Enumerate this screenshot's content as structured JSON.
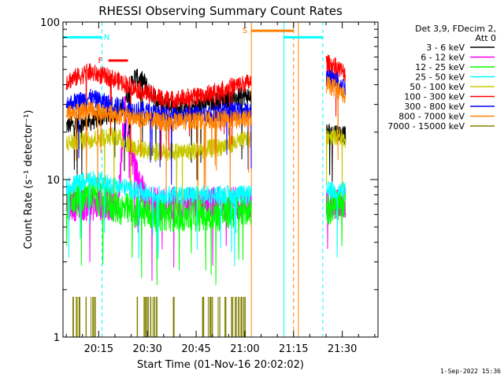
{
  "chart_data": {
    "type": "line",
    "title": "RHESSI Observing Summary Count Rates",
    "xlabel": "Start Time (01-Nov-16 20:02:02)",
    "ylabel": "Count Rate (s⁻¹ detector⁻¹)",
    "yscale": "log",
    "ylim": [
      1,
      100
    ],
    "y_ticks": [
      {
        "value": 1,
        "label": "1"
      },
      {
        "value": 10,
        "label": "10"
      },
      {
        "value": 100,
        "label": "100"
      }
    ],
    "x_ticks": [
      {
        "minutes": 13,
        "label": "20:15"
      },
      {
        "minutes": 28,
        "label": "20:30"
      },
      {
        "minutes": 43,
        "label": "20:45"
      },
      {
        "minutes": 58,
        "label": "21:00"
      },
      {
        "minutes": 73,
        "label": "21:15"
      },
      {
        "minutes": 88,
        "label": "21:30"
      }
    ],
    "xlim_minutes": [
      2,
      99
    ],
    "legend_header": [
      "Det 3,9, FDecim 2,",
      "Att 0"
    ],
    "legend_position": "right",
    "footer": "1-Sep-2022 15:36",
    "series": [
      {
        "name": "3 - 6 keV",
        "color": "#000000",
        "x": [
          3,
          10,
          20,
          24,
          27,
          29,
          33,
          40,
          50,
          59,
          83,
          86,
          89
        ],
        "y": [
          22,
          23,
          28,
          45,
          42,
          35,
          30,
          28,
          32,
          34,
          20,
          20,
          19
        ]
      },
      {
        "name": "6 - 12 keV",
        "color": "#ff00ff",
        "x": [
          3,
          10,
          19,
          21,
          23,
          25,
          26,
          27,
          28,
          29,
          83,
          86,
          89
        ],
        "y": [
          7,
          7,
          7,
          28,
          15,
          10,
          9,
          8,
          7,
          7,
          7,
          7,
          7
        ]
      },
      {
        "name": "12 - 25 keV",
        "color": "#00ff00",
        "x": [
          3,
          10,
          20,
          30,
          40,
          50,
          59,
          83,
          86,
          89
        ],
        "y": [
          7,
          8,
          6.5,
          6,
          6,
          6,
          6.5,
          6.5,
          7,
          7
        ]
      },
      {
        "name": "25 - 50 keV",
        "color": "#00ffff",
        "x": [
          3,
          10,
          20,
          30,
          40,
          50,
          59,
          83,
          86,
          89
        ],
        "y": [
          9,
          10,
          9,
          8,
          8,
          8,
          8,
          8.5,
          8.5,
          8.5
        ]
      },
      {
        "name": "50 - 100 keV",
        "color": "#c8c800",
        "x": [
          3,
          10,
          18,
          24,
          30,
          40,
          50,
          59,
          83,
          86,
          89
        ],
        "y": [
          17,
          18,
          19,
          16,
          15,
          15,
          16,
          18,
          19,
          19,
          18
        ]
      },
      {
        "name": "100 - 300 keV",
        "color": "#ff0000",
        "x": [
          3,
          10,
          17,
          22,
          28,
          35,
          45,
          52,
          59,
          83,
          86,
          89
        ],
        "y": [
          42,
          48,
          44,
          40,
          35,
          32,
          34,
          38,
          41,
          55,
          52,
          47
        ]
      },
      {
        "name": "300 - 800 keV",
        "color": "#0000ff",
        "x": [
          3,
          10,
          17,
          22,
          28,
          35,
          45,
          52,
          59,
          83,
          86,
          89
        ],
        "y": [
          30,
          33,
          30,
          28,
          27,
          25,
          26,
          27,
          27,
          45,
          43,
          38
        ]
      },
      {
        "name": "800 - 7000 keV",
        "color": "#ff8000",
        "x": [
          3,
          10,
          17,
          22,
          28,
          35,
          45,
          52,
          59,
          83,
          86,
          89
        ],
        "y": [
          26,
          28,
          26,
          25,
          24,
          23,
          24,
          24,
          24,
          40,
          38,
          34
        ]
      },
      {
        "name": "7000 - 15000 keV",
        "color": "#808000",
        "x": [
          5,
          6,
          7,
          9,
          11,
          12,
          25,
          27,
          28,
          29,
          30,
          31,
          36,
          45,
          47,
          48,
          50,
          52,
          54,
          55,
          56,
          57,
          58
        ],
        "y": [
          1.8,
          1.8,
          1.8,
          1.8,
          1.8,
          1.8,
          1.8,
          1.8,
          1.8,
          1.8,
          1.8,
          1.8,
          1.8,
          1.8,
          1.8,
          1.8,
          1.8,
          1.8,
          1.8,
          1.8,
          1.8,
          1.8,
          1.8
        ]
      }
    ],
    "gaps_minutes": [
      [
        60,
        83
      ],
      [
        90,
        99
      ]
    ],
    "segments": [
      {
        "label": "N",
        "color": "#00ffff",
        "x_start": 2,
        "x_end": 14,
        "y": 80,
        "label_x": 15.5
      },
      {
        "label": "F",
        "color": "#ff0000",
        "x_start": 16,
        "x_end": 22,
        "y": 57,
        "label_x": 13.5
      },
      {
        "label": "S",
        "color": "#ff8000",
        "x_start": 60,
        "x_end": 73,
        "y": 88,
        "label_x": 58
      },
      {
        "label": "",
        "color": "#00ffff",
        "x_start": 70,
        "x_end": 82,
        "y": 80,
        "label_x": 0
      }
    ],
    "vlines": [
      {
        "x": 2,
        "color": "#00ffff",
        "style": "solid"
      },
      {
        "x": 14,
        "color": "#00ffff",
        "style": "dashed"
      },
      {
        "x": 60,
        "color": "#ff8000",
        "style": "solid"
      },
      {
        "x": 70,
        "color": "#00ffff",
        "style": "solid"
      },
      {
        "x": 73,
        "color": "#ff8000",
        "style": "dashed"
      },
      {
        "x": 74.5,
        "color": "#ff8000",
        "style": "solid"
      },
      {
        "x": 82,
        "color": "#00ffff",
        "style": "dashed"
      }
    ],
    "grid": false
  }
}
